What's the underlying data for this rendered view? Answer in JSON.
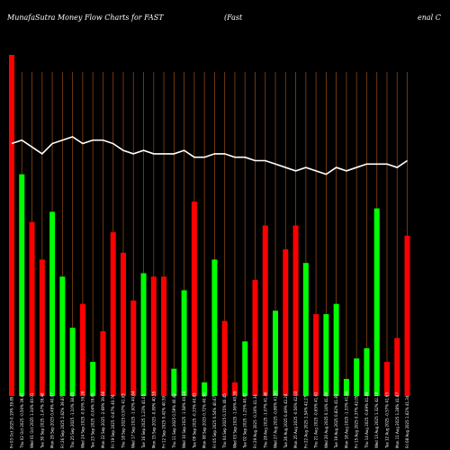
{
  "header": {
    "left": "MunafaSutra  Money Flow  Charts for FAST",
    "middle": "(Fast",
    "right": "enal C"
  },
  "colors": {
    "background": "#000000",
    "up": "#00ff00",
    "down": "#ff0000",
    "grid": "#8b4513",
    "line": "#ffffff"
  },
  "chart_data": {
    "type": "bar",
    "ylim": [
      0,
      100
    ],
    "line_ylim": [
      0,
      100
    ],
    "bars": [
      {
        "label": "Fri 03 Oct 2025 0.19% 39.89",
        "value": 100,
        "dir": "down"
      },
      {
        "label": "Thu 02 Oct 2025 -0.50% 39.81",
        "value": 65,
        "dir": "up"
      },
      {
        "label": "Wed 01 Oct 2025 1.34% 40.01",
        "value": 51,
        "dir": "down"
      },
      {
        "label": "Tue 30 Sep 2025 -1.47% 39.48",
        "value": 40,
        "dir": "down"
      },
      {
        "label": "Mon 29 Sep 2025 0.49% 40.07",
        "value": 54,
        "dir": "up"
      },
      {
        "label": "Fri 26 Sep 2025 2.62% 39.87",
        "value": 35,
        "dir": "up"
      },
      {
        "label": "Thu 25 Sep 2025 -1.10% 38.85",
        "value": 20,
        "dir": "up"
      },
      {
        "label": "Wed 24 Sep 2025 -0.93% 39.28",
        "value": 27,
        "dir": "down"
      },
      {
        "label": "Tue 23 Sep 2025 -0.04% 39.65",
        "value": 10,
        "dir": "up"
      },
      {
        "label": "Mon 22 Sep 2025 -2.69% 39.66",
        "value": 19,
        "dir": "down"
      },
      {
        "label": "Fri 19 Sep 2025 -0.67% 40.76",
        "value": 48,
        "dir": "down"
      },
      {
        "label": "Thu 18 Sep 2025 0.97% 41.03",
        "value": 42,
        "dir": "down"
      },
      {
        "label": "Wed 17 Sep 2025 -1.00% 40.64",
        "value": 28,
        "dir": "down"
      },
      {
        "label": "Tue 16 Sep 2025 1.23% 41.05",
        "value": 36,
        "dir": "up"
      },
      {
        "label": "Mon 15 Sep 2025 -0.09% 40.55",
        "value": 35,
        "dir": "down"
      },
      {
        "label": "Fri 12 Sep 2025 0.42% 40.59",
        "value": 35,
        "dir": "down"
      },
      {
        "label": "Thu 11 Sep 2025 0.59% 40.42",
        "value": 8,
        "dir": "up"
      },
      {
        "label": "Wed 10 Sep 2025 -1.58% 40.18",
        "value": 31,
        "dir": "up"
      },
      {
        "label": "Tue 09 Sep 2025 -0.33% 40.83",
        "value": 57,
        "dir": "down"
      },
      {
        "label": "Mon 08 Sep 2025 0.72% 40.96",
        "value": 4,
        "dir": "up"
      },
      {
        "label": "Fri 05 Sep 2025 0.54% 40.67",
        "value": 40,
        "dir": "up"
      },
      {
        "label": "Thu 04 Sep 2025 0.15% 40.45",
        "value": 22,
        "dir": "down"
      },
      {
        "label": "Wed 03 Sep 2025 -1.06% 40.39",
        "value": 4,
        "dir": "down"
      },
      {
        "label": "Tue 02 Sep 2025 -1.25% 40.82",
        "value": 16,
        "dir": "up"
      },
      {
        "label": "Fri 29 Aug 2025 -0.30% 41.34",
        "value": 34,
        "dir": "down"
      },
      {
        "label": "Thu 28 Aug 2025 -1.07% 41.46",
        "value": 50,
        "dir": "down"
      },
      {
        "label": "Wed 27 Aug 2025 -0.80% 41.90",
        "value": 25,
        "dir": "up"
      },
      {
        "label": "Tue 26 Aug 2025 0.49% 42.24",
        "value": 43,
        "dir": "down"
      },
      {
        "label": "Mon 25 Aug 2025 -0.56% 42.03",
        "value": 50,
        "dir": "down"
      },
      {
        "label": "Fri 22 Aug 2025 1.54% 42.27",
        "value": 39,
        "dir": "up"
      },
      {
        "label": "Thu 21 Aug 2025 -0.65% 41.62",
        "value": 24,
        "dir": "down"
      },
      {
        "label": "Wed 20 Aug 2025 0.14% 41.89",
        "value": 24,
        "dir": "up"
      },
      {
        "label": "Tue 19 Aug 2025 0.82% 41.83",
        "value": 27,
        "dir": "up"
      },
      {
        "label": "Mon 18 Aug 2025 -1.33% 41.49",
        "value": 5,
        "dir": "up"
      },
      {
        "label": "Fri 15 Aug 2025 0.37% 42.05",
        "value": 11,
        "dir": "up"
      },
      {
        "label": "Thu 14 Aug 2025 -0.69% 41.89",
        "value": 14,
        "dir": "up"
      },
      {
        "label": "Wed 13 Aug 2025 1.32% 42.18",
        "value": 55,
        "dir": "up"
      },
      {
        "label": "Tue 12 Aug 2025 -0.57% 41.63",
        "value": 10,
        "dir": "down"
      },
      {
        "label": "Mon 11 Aug 2025 1.28% 41.87",
        "value": 17,
        "dir": "down"
      },
      {
        "label": "Fri 08 Aug 2025 1.62% 41.34",
        "value": 47,
        "dir": "down"
      }
    ],
    "line": [
      74,
      75,
      73,
      71,
      74,
      75,
      76,
      74,
      75,
      75,
      74,
      72,
      71,
      72,
      71,
      71,
      71,
      72,
      70,
      70,
      71,
      71,
      70,
      70,
      69,
      69,
      68,
      67,
      66,
      67,
      66,
      65,
      67,
      66,
      67,
      68,
      68,
      68,
      67,
      69
    ]
  }
}
